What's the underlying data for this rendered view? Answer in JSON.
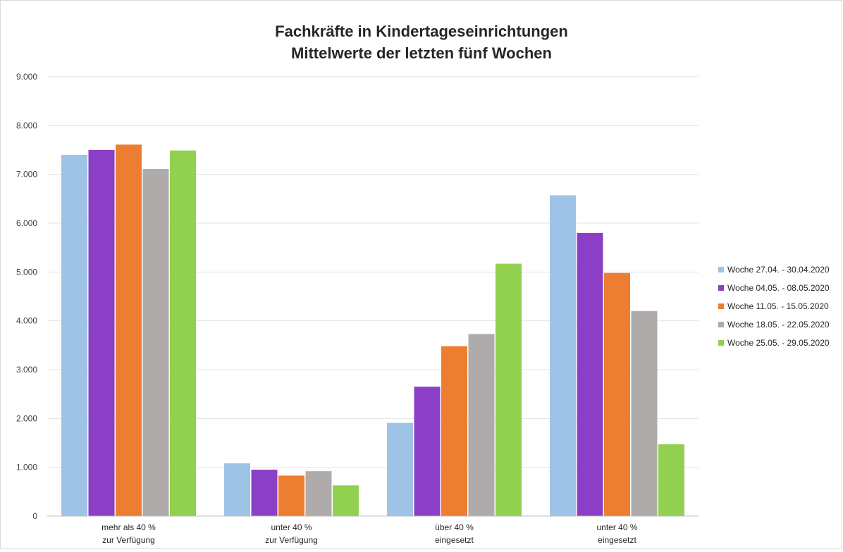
{
  "chart_data": {
    "type": "bar",
    "title": [
      "Fachkräfte in Kindertageseinrichtungen",
      "Mittelwerte der letzten fünf Wochen"
    ],
    "categories": [
      [
        "mehr als 40 %",
        "zur Verfügung"
      ],
      [
        "unter 40 %",
        "zur Verfügung"
      ],
      [
        "über 40 %",
        "eingesetzt"
      ],
      [
        "unter 40 %",
        "eingesetzt"
      ]
    ],
    "series": [
      {
        "name": "Woche 27.04. - 30.04.2020",
        "color": "#9dc3e6",
        "values": [
          7400,
          1080,
          1910,
          6570
        ]
      },
      {
        "name": "Woche 04.05. - 08.05.2020",
        "color": "#8b3fc7",
        "values": [
          7500,
          950,
          2650,
          5800
        ]
      },
      {
        "name": "Woche 11.05. - 15.05.2020",
        "color": "#ed7d31",
        "values": [
          7610,
          830,
          3480,
          4980
        ]
      },
      {
        "name": "Woche 18.05. - 22.05.2020",
        "color": "#afabab",
        "values": [
          7110,
          920,
          3730,
          4200
        ]
      },
      {
        "name": "Woche 25.05. - 29.05.2020",
        "color": "#92d050",
        "values": [
          7490,
          630,
          5170,
          1470
        ]
      }
    ],
    "yticks": [
      "0",
      "1.000",
      "2.000",
      "3.000",
      "4.000",
      "5.000",
      "6.000",
      "7.000",
      "8.000",
      "9.000"
    ],
    "ylim": [
      0,
      9000
    ],
    "grid": true,
    "legend": "right"
  }
}
